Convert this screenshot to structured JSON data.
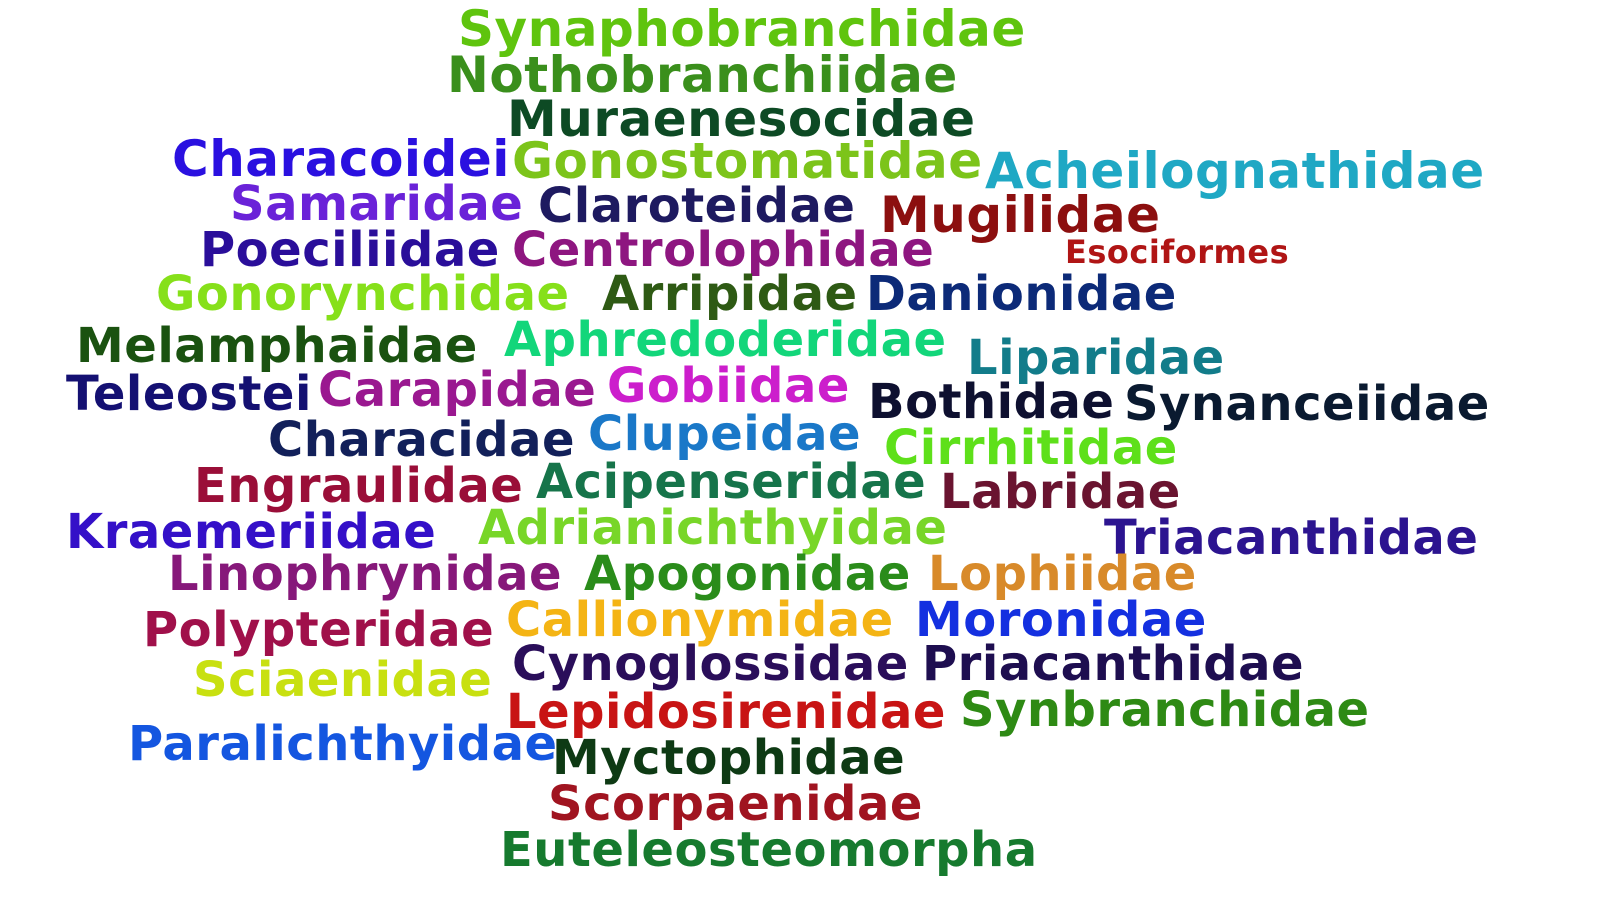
{
  "words": [
    {
      "id": "synaphobranchidae",
      "text": "Synaphobranchidae",
      "color": "#5fc40e"
    },
    {
      "id": "nothobranchiidae",
      "text": "Nothobranchiidae",
      "color": "#3a8f1c"
    },
    {
      "id": "muraenesocidae",
      "text": "Muraenesocidae",
      "color": "#0d4a24"
    },
    {
      "id": "characoidei",
      "text": "Characoidei",
      "color": "#2a10e0"
    },
    {
      "id": "gonostomatidae",
      "text": "Gonostomatidae",
      "color": "#7cc41a"
    },
    {
      "id": "acheilognathidae",
      "text": "Acheilognathidae",
      "color": "#1fa8c4"
    },
    {
      "id": "samaridae",
      "text": "Samaridae",
      "color": "#6a22d8"
    },
    {
      "id": "claroteidae",
      "text": "Claroteidae",
      "color": "#1e1a60"
    },
    {
      "id": "mugilidae",
      "text": "Mugilidae",
      "color": "#8c0f0f"
    },
    {
      "id": "poeciliidae",
      "text": "Poeciliidae",
      "color": "#2a0e9a"
    },
    {
      "id": "centrolophidae",
      "text": "Centrolophidae",
      "color": "#8e1680"
    },
    {
      "id": "esociformes",
      "text": "Esociformes",
      "color": "#b01515"
    },
    {
      "id": "gonorynchidae",
      "text": "Gonorynchidae",
      "color": "#86e01a"
    },
    {
      "id": "arripidae",
      "text": "Arripidae",
      "color": "#2e5a14"
    },
    {
      "id": "danionidae",
      "text": "Danionidae",
      "color": "#0c2a78"
    },
    {
      "id": "melamphaidae",
      "text": "Melamphaidae",
      "color": "#1a5210"
    },
    {
      "id": "aphredoderidae",
      "text": "Aphredoderidae",
      "color": "#12d67a"
    },
    {
      "id": "liparidae",
      "text": "Liparidae",
      "color": "#127c8a"
    },
    {
      "id": "teleostei",
      "text": "Teleostei",
      "color": "#141072"
    },
    {
      "id": "carapidae",
      "text": "Carapidae",
      "color": "#9a1890"
    },
    {
      "id": "gobiidae",
      "text": "Gobiidae",
      "color": "#cc1ecc"
    },
    {
      "id": "bothidae",
      "text": "Bothidae",
      "color": "#0e1030"
    },
    {
      "id": "synanceiidae",
      "text": "Synanceiidae",
      "color": "#0a1a30"
    },
    {
      "id": "characidae",
      "text": "Characidae",
      "color": "#12205a"
    },
    {
      "id": "clupeidae",
      "text": "Clupeidae",
      "color": "#1a78c8"
    },
    {
      "id": "cirrhitidae",
      "text": "Cirrhitidae",
      "color": "#5ee01a"
    },
    {
      "id": "engraulidae",
      "text": "Engraulidae",
      "color": "#9a0e38"
    },
    {
      "id": "acipenseridae",
      "text": "Acipenseridae",
      "color": "#16744a"
    },
    {
      "id": "labridae",
      "text": "Labridae",
      "color": "#6a1430"
    },
    {
      "id": "kraemeriidae",
      "text": "Kraemeriidae",
      "color": "#3410c8"
    },
    {
      "id": "adrianichthyidae",
      "text": "Adrianichthyidae",
      "color": "#78d628"
    },
    {
      "id": "triacanthidae",
      "text": "Triacanthidae",
      "color": "#2c1490"
    },
    {
      "id": "linophrynidae",
      "text": "Linophrynidae",
      "color": "#86187a"
    },
    {
      "id": "apogonidae",
      "text": "Apogonidae",
      "color": "#2a8c1a"
    },
    {
      "id": "lophiidae",
      "text": "Lophiidae",
      "color": "#d88a2a"
    },
    {
      "id": "polypteridae",
      "text": "Polypteridae",
      "color": "#a0104a"
    },
    {
      "id": "callionymidae",
      "text": "Callionymidae",
      "color": "#f4b414"
    },
    {
      "id": "moronidae",
      "text": "Moronidae",
      "color": "#1430e0"
    },
    {
      "id": "sciaenidae",
      "text": "Sciaenidae",
      "color": "#c8e010"
    },
    {
      "id": "cynoglossidae",
      "text": "Cynoglossidae",
      "color": "#2a0e5a"
    },
    {
      "id": "priacanthidae",
      "text": "Priacanthidae",
      "color": "#1e0e50"
    },
    {
      "id": "lepidosirenidae",
      "text": "Lepidosirenidae",
      "color": "#c81414"
    },
    {
      "id": "synbranchidae",
      "text": "Synbranchidae",
      "color": "#2e8a14"
    },
    {
      "id": "paralichthyidae",
      "text": "Paralichthyidae",
      "color": "#1456e0"
    },
    {
      "id": "myctophidae",
      "text": "Myctophidae",
      "color": "#0e3a14"
    },
    {
      "id": "scorpaenidae",
      "text": "Scorpaenidae",
      "color": "#a01420"
    },
    {
      "id": "euteleosteomorpha",
      "text": "Euteleosteomorpha",
      "color": "#167a2e"
    }
  ]
}
